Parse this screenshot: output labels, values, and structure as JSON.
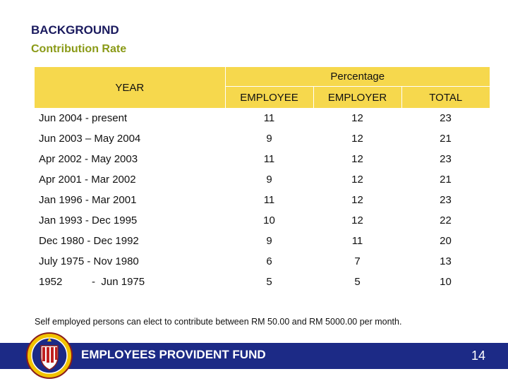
{
  "header": {
    "title": "BACKGROUND",
    "subtitle": "Contribution Rate"
  },
  "table": {
    "year_header": "YEAR",
    "group_header": "Percentage",
    "columns": [
      "EMPLOYEE",
      "EMPLOYER",
      "TOTAL"
    ],
    "rows": [
      {
        "year": "Jun 2004 - present",
        "employee": "11",
        "employer": "12",
        "total": "23"
      },
      {
        "year": "Jun 2003 – May 2004",
        "employee": "9",
        "employer": "12",
        "total": "21"
      },
      {
        "year": "Apr 2002  -  May 2003",
        "employee": "11",
        "employer": "12",
        "total": "23"
      },
      {
        "year": "Apr 2001 -  Mar 2002",
        "employee": "9",
        "employer": "12",
        "total": "21"
      },
      {
        "year": "Jan 1996  -  Mar 2001",
        "employee": "11",
        "employer": "12",
        "total": "23"
      },
      {
        "year": "Jan 1993  -  Dec 1995",
        "employee": "10",
        "employer": "12",
        "total": "22"
      },
      {
        "year": "Dec 1980  -  Dec 1992",
        "employee": "9",
        "employer": "11",
        "total": "20"
      },
      {
        "year": "July 1975  -  Nov 1980",
        "employee": "6",
        "employer": "7",
        "total": "13"
      },
      {
        "year": "1952          -  Jun 1975",
        "employee": "5",
        "employer": "5",
        "total": "10"
      }
    ]
  },
  "footnote": "Self employed persons can elect to contribute between RM 50.00 and RM 5000.00 per month.",
  "footer": {
    "label": "EMPLOYEES PROVIDENT FUND",
    "page_number": "14",
    "band_color": "#1c2a86",
    "logo_icon": "kwsp-crest-logo"
  },
  "colors": {
    "header_fill": "#f6d84d",
    "title_color": "#1a1a5e",
    "subtitle_color": "#8a9a17"
  }
}
